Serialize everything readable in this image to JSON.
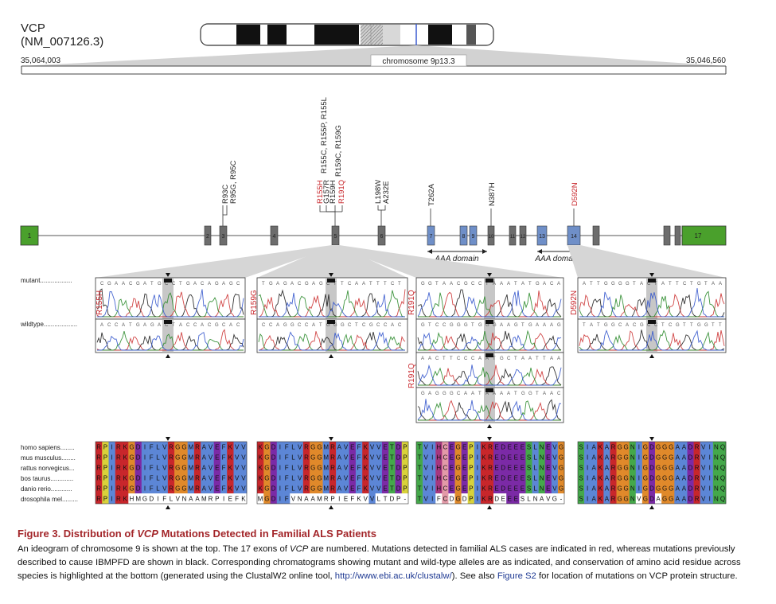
{
  "gene": {
    "name": "VCP",
    "accession": "(NM_007126.3)"
  },
  "coords": {
    "left": "35,064,003",
    "right": "35,046,560"
  },
  "band_label": "chromosome 9p13.3",
  "exon_labels": {
    "e1": "1",
    "e2": "2",
    "e3": "3",
    "e4": "4",
    "e5": "5",
    "e6": "6",
    "e7": "7",
    "e8": "8",
    "e9": "9",
    "e10": "10",
    "e11": "11",
    "e12": "12",
    "e13": "13",
    "e14": "14",
    "e17": "17"
  },
  "mutations": {
    "m1": "R93C",
    "m2": "R95G, R95C",
    "m3": "R155H",
    "m4": "G157R",
    "m5": "R159H",
    "m6": "R191Q",
    "m7": "R155C, R155P, R155L",
    "m8": "R159C, R159G",
    "m9": "L198W",
    "m10": "A232E",
    "m11": "T262A",
    "m12": "N387H",
    "m13": "D592N"
  },
  "domains": {
    "d1": "AAA domain",
    "d2": "AAA domain"
  },
  "trace_labels": {
    "mutant": "mutant..................",
    "wildtype": "wildtype..................."
  },
  "panel_labels": {
    "p1": "R155H",
    "p2": "R159G",
    "p3": "R191Q",
    "p4": "D592N",
    "p5": "R191Q"
  },
  "species": [
    "homo sapiens........",
    "mus musculus........",
    "rattus norvegicus...",
    "bos taurus.............",
    "danio rerio............",
    "drosophila mel........."
  ],
  "alignments": [
    [
      "RPIRKGDIFLVRGGMRAVEFKVV",
      "RPIRKGDIFLVRGGMRAVEFKVV",
      "RPIRKGDIFLVRGGMRAVEFKVV",
      "RPIRKGDIFLVRGGMRAVEFKVV",
      "RPIRKGDIFLVRGGMRAVEFKVV",
      "RPIRKHMGDIFLVNAAMRPIEFKVV"
    ],
    [
      "KGDIFLVRGGMRAVEFKVVETDP",
      "KGDIFLVRGGMRAVEFKVVETDP",
      "KGDIFLVRGGMRAVEFKVVETDP",
      "KGDIFLVRGGMRAVEFKVVETDP",
      "KGDIFLVRGGMRAVEFKVVETDP",
      "MGDIFVNAAMRPIEFKVVLTDP"
    ],
    [
      "TVIHCEGEPIKREDEEESLNEVG",
      "TVIHCEGEPIKREDEEESLNEVG",
      "TVIHCEGEPIKREDEEESLNEVG",
      "TVIHCEGEPIKREDEEESLNEVG",
      "TVIHCEGEPIKREDEEESLNEVG",
      "TVIFCDGDPIKRDEEESLNAVG"
    ],
    [
      "SIAKARGGNIGDGGGAADRVINQ",
      "SIAKARGGNIGDGGGAADRVINQ",
      "SIAKARGGNIGDGGGAADRVINQ",
      "SIAKARGGNIGDGGGAADRVINQ",
      "SIAKARGGNIGDGGGAADRVINQ",
      "SIAKARGGNVGDAGGAADRVINQ"
    ]
  ],
  "caption": {
    "title_prefix": "Figure 3.  Distribution of ",
    "title_gene": "VCP",
    "title_suffix": " Mutations Detected in Familial ALS Patients",
    "body_1": "An ideogram of chromosome 9 is shown at the top. The 17 exons of ",
    "body_gene": "VCP",
    "body_2": " are numbered. Mutations detected in familial ALS cases are indicated in red, whereas mutations previously described to cause IBMPFD are shown in black. Corresponding chromatograms showing mutant and wild-type alleles are as indicated, and conservation of amino acid residue across species is highlighted at the bottom (generated using the ClustalW2 online tool, ",
    "body_link": "http://www.ebi.ac.uk/clustalw/",
    "body_3": "). See also ",
    "body_fig": "Figure S2",
    "body_4": " for location of mutations on VCP protein structure."
  },
  "colors": {
    "exon_end": "#4aa02c",
    "exon_gray": "#6d6d6d",
    "exon_blue": "#6f8fc8",
    "mutation_red": "#c8262b",
    "caption_title": "#a3262a",
    "link": "#1f3a93"
  }
}
